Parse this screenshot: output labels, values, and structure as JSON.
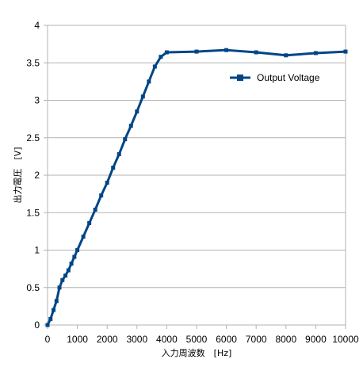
{
  "chart_data": {
    "type": "line",
    "title": "",
    "xlabel": "入力周波数　[Hz]",
    "ylabel": "出力電圧　[V]",
    "xlim": [
      0,
      10000
    ],
    "ylim": [
      0,
      4
    ],
    "x_ticks": [
      "0",
      "1000",
      "2000",
      "3000",
      "4000",
      "5000",
      "6000",
      "7000",
      "8000",
      "9000",
      "10000"
    ],
    "y_ticks": [
      "0",
      "0.5",
      "1",
      "1.5",
      "2",
      "2.5",
      "3",
      "3.5",
      "4"
    ],
    "grid": "horizontal",
    "legend_position": "right",
    "series": [
      {
        "name": "Output Voltage",
        "color": "#004586",
        "marker": "square",
        "x": [
          0,
          100,
          200,
          300,
          400,
          500,
          600,
          700,
          800,
          900,
          1000,
          1200,
          1400,
          1600,
          1800,
          2000,
          2200,
          2400,
          2600,
          2800,
          3000,
          3200,
          3400,
          3600,
          3800,
          4000,
          5000,
          6000,
          7000,
          8000,
          9000,
          10000
        ],
        "y": [
          0.0,
          0.08,
          0.2,
          0.32,
          0.5,
          0.6,
          0.66,
          0.73,
          0.82,
          0.91,
          1.0,
          1.18,
          1.36,
          1.54,
          1.73,
          1.9,
          2.1,
          2.28,
          2.48,
          2.66,
          2.85,
          3.05,
          3.25,
          3.45,
          3.58,
          3.64,
          3.65,
          3.67,
          3.64,
          3.6,
          3.63,
          3.65
        ]
      }
    ]
  }
}
